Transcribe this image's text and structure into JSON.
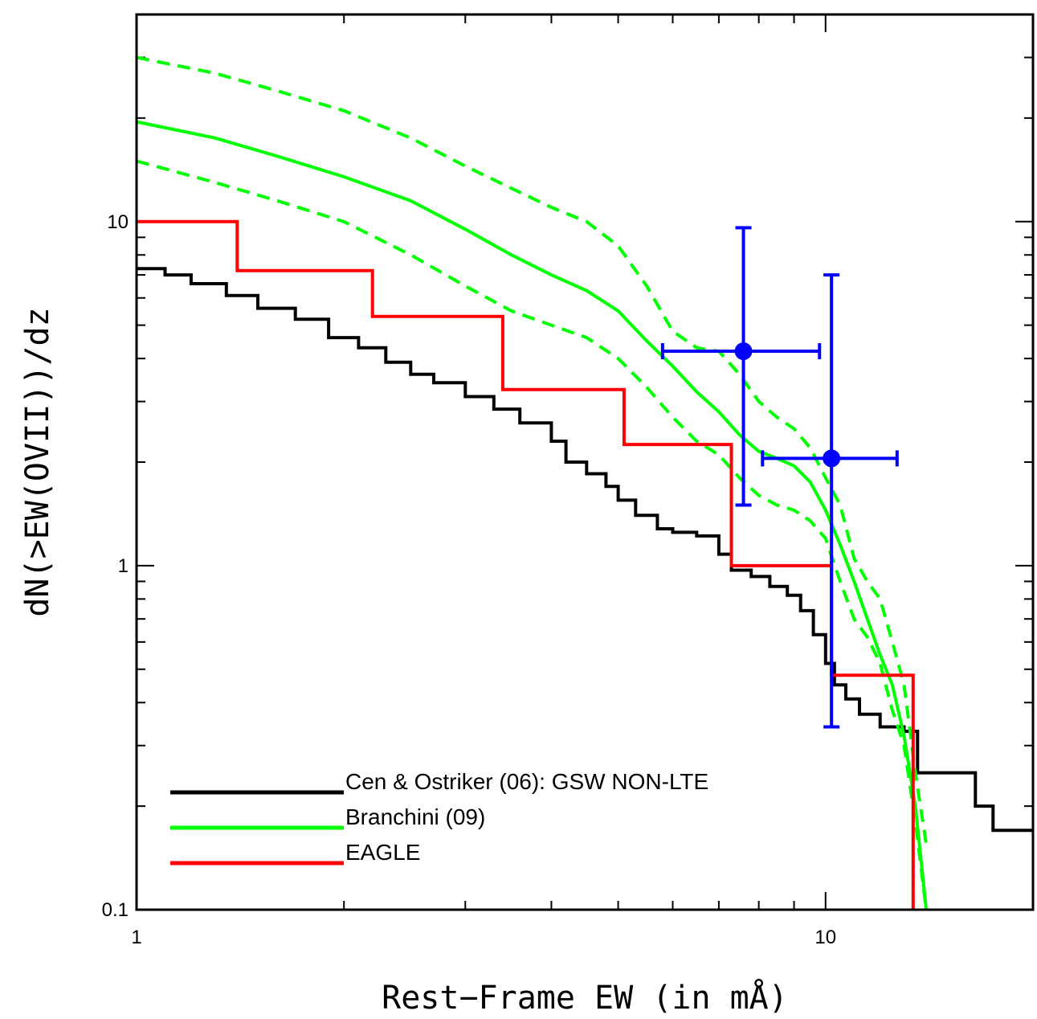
{
  "chart_data": {
    "type": "line",
    "title": "",
    "xlabel": "Rest−Frame EW (in mÅ)",
    "ylabel": "dN(>EW(OVII))/dz",
    "x_scale": "log",
    "y_scale": "log",
    "xlim": [
      1,
      20
    ],
    "ylim": [
      0.1,
      40
    ],
    "x_ticks": [
      {
        "value": 1,
        "label": "1"
      },
      {
        "value": 10,
        "label": "10"
      }
    ],
    "y_ticks": [
      {
        "value": 0.1,
        "label": "0.1"
      },
      {
        "value": 1,
        "label": "1"
      },
      {
        "value": 10,
        "label": "10"
      }
    ],
    "grid": false,
    "legend_position": "bottom-left",
    "series": [
      {
        "name": "Cen & Ostriker (06): GSW NON-LTE",
        "color": "#000000",
        "style": "solid-step",
        "points": [
          [
            1.0,
            7.3
          ],
          [
            1.1,
            7.0
          ],
          [
            1.2,
            6.6
          ],
          [
            1.35,
            6.1
          ],
          [
            1.5,
            5.6
          ],
          [
            1.7,
            5.2
          ],
          [
            1.9,
            4.6
          ],
          [
            2.1,
            4.3
          ],
          [
            2.3,
            3.9
          ],
          [
            2.5,
            3.6
          ],
          [
            2.7,
            3.4
          ],
          [
            3.0,
            3.1
          ],
          [
            3.3,
            2.85
          ],
          [
            3.6,
            2.6
          ],
          [
            4.0,
            2.3
          ],
          [
            4.2,
            2.0
          ],
          [
            4.5,
            1.85
          ],
          [
            4.8,
            1.7
          ],
          [
            5.0,
            1.55
          ],
          [
            5.3,
            1.4
          ],
          [
            5.7,
            1.28
          ],
          [
            6.0,
            1.25
          ],
          [
            6.5,
            1.22
          ],
          [
            7.0,
            1.08
          ],
          [
            7.3,
            0.97
          ],
          [
            7.8,
            0.93
          ],
          [
            8.3,
            0.87
          ],
          [
            8.8,
            0.82
          ],
          [
            9.2,
            0.74
          ],
          [
            9.6,
            0.63
          ],
          [
            10.0,
            0.52
          ],
          [
            10.3,
            0.45
          ],
          [
            10.7,
            0.41
          ],
          [
            11.2,
            0.37
          ],
          [
            12.0,
            0.34
          ],
          [
            13.0,
            0.33
          ],
          [
            13.6,
            0.25
          ],
          [
            15.5,
            0.25
          ],
          [
            16.5,
            0.2
          ],
          [
            17.5,
            0.17
          ],
          [
            20.0,
            0.17
          ]
        ]
      },
      {
        "name": "Branchini (09)",
        "color": "#00ff00",
        "style": "solid",
        "points": [
          [
            1.0,
            19.5
          ],
          [
            1.3,
            17.5
          ],
          [
            1.6,
            15.5
          ],
          [
            2.0,
            13.5
          ],
          [
            2.5,
            11.5
          ],
          [
            3.0,
            9.5
          ],
          [
            3.5,
            8.0
          ],
          [
            4.0,
            7.0
          ],
          [
            4.5,
            6.3
          ],
          [
            5.0,
            5.5
          ],
          [
            5.5,
            4.5
          ],
          [
            6.0,
            3.8
          ],
          [
            6.5,
            3.2
          ],
          [
            7.0,
            2.8
          ],
          [
            7.5,
            2.4
          ],
          [
            8.0,
            2.15
          ],
          [
            8.5,
            2.05
          ],
          [
            9.0,
            1.95
          ],
          [
            9.5,
            1.75
          ],
          [
            10.0,
            1.45
          ],
          [
            10.5,
            1.15
          ],
          [
            11.0,
            0.9
          ],
          [
            11.5,
            0.7
          ],
          [
            12.0,
            0.55
          ],
          [
            12.5,
            0.45
          ],
          [
            13.0,
            0.32
          ],
          [
            13.5,
            0.2
          ],
          [
            14.0,
            0.1
          ]
        ]
      },
      {
        "name": "Branchini (09) upper",
        "color": "#00ff00",
        "style": "dashed",
        "points": [
          [
            1.0,
            30.0
          ],
          [
            1.3,
            27.0
          ],
          [
            1.6,
            24.0
          ],
          [
            2.0,
            21.0
          ],
          [
            2.5,
            17.5
          ],
          [
            3.0,
            14.5
          ],
          [
            3.5,
            12.5
          ],
          [
            4.0,
            11.0
          ],
          [
            4.5,
            10.0
          ],
          [
            5.0,
            8.5
          ],
          [
            5.5,
            6.5
          ],
          [
            6.0,
            4.8
          ],
          [
            6.5,
            4.3
          ],
          [
            7.0,
            4.2
          ],
          [
            7.5,
            3.6
          ],
          [
            8.0,
            3.0
          ],
          [
            8.5,
            2.7
          ],
          [
            9.0,
            2.5
          ],
          [
            9.5,
            2.2
          ],
          [
            10.0,
            1.8
          ],
          [
            10.5,
            1.5
          ],
          [
            11.0,
            1.05
          ],
          [
            11.5,
            0.9
          ],
          [
            12.0,
            0.8
          ],
          [
            12.5,
            0.6
          ],
          [
            13.0,
            0.45
          ],
          [
            13.5,
            0.25
          ],
          [
            14.0,
            0.155
          ]
        ]
      },
      {
        "name": "Branchini (09) lower",
        "color": "#00ff00",
        "style": "dashed",
        "points": [
          [
            1.0,
            15.0
          ],
          [
            1.3,
            13.0
          ],
          [
            1.6,
            11.5
          ],
          [
            2.0,
            10.0
          ],
          [
            2.5,
            8.0
          ],
          [
            3.0,
            6.5
          ],
          [
            3.5,
            5.5
          ],
          [
            4.0,
            5.0
          ],
          [
            4.5,
            4.6
          ],
          [
            5.0,
            4.0
          ],
          [
            5.5,
            3.3
          ],
          [
            6.0,
            2.7
          ],
          [
            6.5,
            2.3
          ],
          [
            7.0,
            2.1
          ],
          [
            7.5,
            1.8
          ],
          [
            8.0,
            1.6
          ],
          [
            8.5,
            1.5
          ],
          [
            9.0,
            1.45
          ],
          [
            9.5,
            1.35
          ],
          [
            10.0,
            1.2
          ],
          [
            10.5,
            0.9
          ],
          [
            11.0,
            0.7
          ],
          [
            11.5,
            0.62
          ],
          [
            12.0,
            0.52
          ],
          [
            12.5,
            0.38
          ],
          [
            13.0,
            0.3
          ],
          [
            13.5,
            0.18
          ],
          [
            14.0,
            0.1
          ]
        ]
      },
      {
        "name": "EAGLE",
        "color": "#ff0000",
        "style": "solid-step",
        "points": [
          [
            1.0,
            10.0
          ],
          [
            1.4,
            10.0
          ],
          [
            1.4,
            7.2
          ],
          [
            2.2,
            7.2
          ],
          [
            2.2,
            5.3
          ],
          [
            3.4,
            5.3
          ],
          [
            3.4,
            3.25
          ],
          [
            5.1,
            3.25
          ],
          [
            5.1,
            2.25
          ],
          [
            7.3,
            2.25
          ],
          [
            7.3,
            1.0
          ],
          [
            10.2,
            1.0
          ],
          [
            10.2,
            0.48
          ],
          [
            13.4,
            0.48
          ],
          [
            13.4,
            0.1
          ]
        ]
      }
    ],
    "data_points": [
      {
        "x": 7.6,
        "y": 4.2,
        "x_err": [
          5.8,
          9.8
        ],
        "y_err": [
          1.5,
          9.6
        ],
        "color": "#0000ff"
      },
      {
        "x": 10.2,
        "y": 2.05,
        "x_err": [
          8.1,
          12.7
        ],
        "y_err": [
          0.34,
          7.0
        ],
        "color": "#0000ff"
      }
    ]
  }
}
